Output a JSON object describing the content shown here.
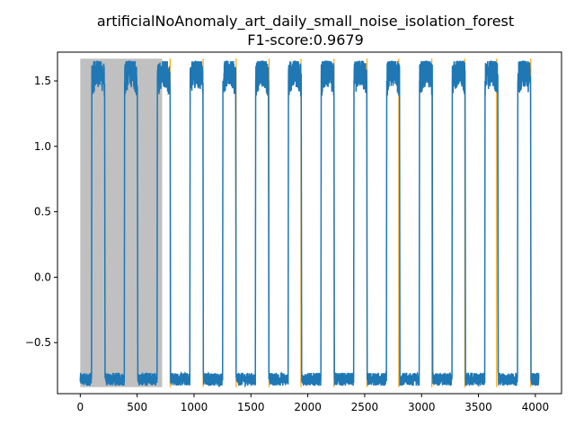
{
  "chart_data": {
    "type": "line",
    "title_line1": "artificialNoAnomaly_art_daily_small_noise_isolation_forest",
    "title_line2": "F1-score:0.9679",
    "xlabel": "",
    "ylabel": "",
    "xlim": [
      -200,
      4230
    ],
    "ylim": [
      -0.89,
      1.72
    ],
    "x_ticks": [
      {
        "value": 0,
        "label": "0"
      },
      {
        "value": 500,
        "label": "500"
      },
      {
        "value": 1000,
        "label": "1000"
      },
      {
        "value": 1500,
        "label": "1500"
      },
      {
        "value": 2000,
        "label": "2000"
      },
      {
        "value": 2500,
        "label": "2500"
      },
      {
        "value": 3000,
        "label": "3000"
      },
      {
        "value": 3500,
        "label": "3500"
      },
      {
        "value": 4000,
        "label": "4000"
      }
    ],
    "y_ticks": [
      {
        "value": -0.5,
        "label": "−0.5"
      },
      {
        "value": 0.0,
        "label": "0.0"
      },
      {
        "value": 0.5,
        "label": "0.5"
      },
      {
        "value": 1.0,
        "label": "1.0"
      },
      {
        "value": 1.5,
        "label": "1.5"
      }
    ],
    "grid": false,
    "legend": "none",
    "shaded_region": {
      "x_start": 0,
      "x_end": 720,
      "y_start": -0.84,
      "y_end": 1.67,
      "color": "#c0c0c0"
    },
    "series": [
      {
        "color": "#1f77b4",
        "period": 288,
        "count": 4032,
        "low_level": -0.75,
        "high_level": 1.5,
        "low_noise": 0.05,
        "high_noise": 0.13,
        "rise_offset": 100,
        "fall_offset": 215,
        "peak": 1.65,
        "trough": -0.84
      }
    ],
    "anomaly_markers": {
      "color": "#ffa500",
      "x": [
        790,
        1080,
        1370,
        1660,
        1940,
        2230,
        2520,
        2800,
        3090,
        3380,
        3660,
        3960
      ],
      "y_from": -0.84,
      "y_to": 1.67
    }
  }
}
